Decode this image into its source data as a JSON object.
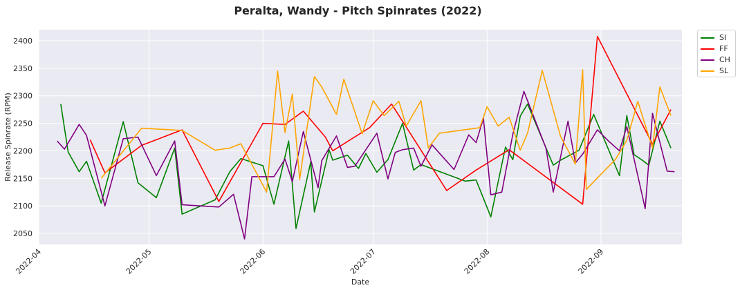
{
  "chart_data": {
    "type": "line",
    "title": "Peralta, Wandy - Pitch Spinrates (2022)",
    "xlabel": "Date",
    "ylabel": "Release Spinrate (RPM)",
    "xlim": [
      "2022-04-01",
      "2022-09-23"
    ],
    "ylim": [
      2030,
      2420
    ],
    "x_ticks": [
      "2022-04-01",
      "2022-05-01",
      "2022-06-01",
      "2022-07-01",
      "2022-08-01",
      "2022-09-01"
    ],
    "x_tick_labels": [
      "2022-04",
      "2022-05",
      "2022-06",
      "2022-07",
      "2022-08",
      "2022-09"
    ],
    "y_ticks": [
      2050,
      2100,
      2150,
      2200,
      2250,
      2300,
      2350,
      2400
    ],
    "grid": true,
    "legend_position": "outside-top-right",
    "series": [
      {
        "name": "SI",
        "color": "#008000",
        "points": [
          [
            "2022-04-07",
            2285
          ],
          [
            "2022-04-09",
            2198
          ],
          [
            "2022-04-12",
            2162
          ],
          [
            "2022-04-14",
            2181
          ],
          [
            "2022-04-18",
            2105
          ],
          [
            "2022-04-24",
            2253
          ],
          [
            "2022-04-28",
            2142
          ],
          [
            "2022-05-03",
            2115
          ],
          [
            "2022-05-08",
            2205
          ],
          [
            "2022-05-10",
            2085
          ],
          [
            "2022-05-19",
            2111
          ],
          [
            "2022-05-23",
            2162
          ],
          [
            "2022-05-26",
            2186
          ],
          [
            "2022-06-01",
            2173
          ],
          [
            "2022-06-04",
            2103
          ],
          [
            "2022-06-08",
            2218
          ],
          [
            "2022-06-10",
            2059
          ],
          [
            "2022-06-14",
            2180
          ],
          [
            "2022-06-15",
            2089
          ],
          [
            "2022-06-19",
            2202
          ],
          [
            "2022-06-20",
            2183
          ],
          [
            "2022-06-24",
            2192
          ],
          [
            "2022-06-27",
            2168
          ],
          [
            "2022-06-29",
            2195
          ],
          [
            "2022-07-02",
            2161
          ],
          [
            "2022-07-05",
            2184
          ],
          [
            "2022-07-09",
            2250
          ],
          [
            "2022-07-12",
            2165
          ],
          [
            "2022-07-14",
            2175
          ],
          [
            "2022-07-26",
            2145
          ],
          [
            "2022-07-29",
            2147
          ],
          [
            "2022-08-02",
            2080
          ],
          [
            "2022-08-06",
            2207
          ],
          [
            "2022-08-08",
            2184
          ],
          [
            "2022-08-10",
            2263
          ],
          [
            "2022-08-12",
            2285
          ],
          [
            "2022-08-19",
            2174
          ],
          [
            "2022-08-21",
            2183
          ],
          [
            "2022-08-26",
            2201
          ],
          [
            "2022-08-30",
            2266
          ],
          [
            "2022-09-06",
            2155
          ],
          [
            "2022-09-08",
            2264
          ],
          [
            "2022-09-10",
            2193
          ],
          [
            "2022-09-12",
            2184
          ],
          [
            "2022-09-14",
            2174
          ],
          [
            "2022-09-17",
            2254
          ],
          [
            "2022-09-20",
            2205
          ]
        ]
      },
      {
        "name": "FF",
        "color": "#ff0000",
        "points": [
          [
            "2022-04-15",
            2220
          ],
          [
            "2022-04-19",
            2160
          ],
          [
            "2022-04-29",
            2210
          ],
          [
            "2022-05-10",
            2238
          ],
          [
            "2022-05-20",
            2108
          ],
          [
            "2022-06-01",
            2250
          ],
          [
            "2022-06-07",
            2248
          ],
          [
            "2022-06-12",
            2272
          ],
          [
            "2022-06-18",
            2225
          ],
          [
            "2022-06-20",
            2200
          ],
          [
            "2022-06-30",
            2242
          ],
          [
            "2022-07-06",
            2285
          ],
          [
            "2022-07-21",
            2128
          ],
          [
            "2022-07-29",
            2165
          ],
          [
            "2022-08-07",
            2202
          ],
          [
            "2022-08-27",
            2103
          ],
          [
            "2022-08-31",
            2408
          ],
          [
            "2022-09-15",
            2212
          ],
          [
            "2022-09-20",
            2275
          ]
        ]
      },
      {
        "name": "CH",
        "color": "#800080",
        "points": [
          [
            "2022-04-06",
            2218
          ],
          [
            "2022-04-08",
            2203
          ],
          [
            "2022-04-12",
            2248
          ],
          [
            "2022-04-14",
            2228
          ],
          [
            "2022-04-19",
            2100
          ],
          [
            "2022-04-24",
            2222
          ],
          [
            "2022-04-28",
            2225
          ],
          [
            "2022-05-03",
            2155
          ],
          [
            "2022-05-08",
            2218
          ],
          [
            "2022-05-10",
            2102
          ],
          [
            "2022-05-20",
            2098
          ],
          [
            "2022-05-24",
            2121
          ],
          [
            "2022-05-27",
            2040
          ],
          [
            "2022-05-29",
            2153
          ],
          [
            "2022-06-04",
            2153
          ],
          [
            "2022-06-07",
            2185
          ],
          [
            "2022-06-09",
            2144
          ],
          [
            "2022-06-12",
            2235
          ],
          [
            "2022-06-16",
            2133
          ],
          [
            "2022-06-17",
            2182
          ],
          [
            "2022-06-21",
            2227
          ],
          [
            "2022-06-24",
            2170
          ],
          [
            "2022-06-26",
            2172
          ],
          [
            "2022-07-02",
            2232
          ],
          [
            "2022-07-05",
            2149
          ],
          [
            "2022-07-07",
            2197
          ],
          [
            "2022-07-09",
            2202
          ],
          [
            "2022-07-12",
            2205
          ],
          [
            "2022-07-14",
            2172
          ],
          [
            "2022-07-17",
            2211
          ],
          [
            "2022-07-23",
            2166
          ],
          [
            "2022-07-27",
            2229
          ],
          [
            "2022-07-29",
            2215
          ],
          [
            "2022-07-31",
            2259
          ],
          [
            "2022-08-02",
            2120
          ],
          [
            "2022-08-05",
            2125
          ],
          [
            "2022-08-08",
            2230
          ],
          [
            "2022-08-11",
            2308
          ],
          [
            "2022-08-17",
            2205
          ],
          [
            "2022-08-19",
            2125
          ],
          [
            "2022-08-23",
            2254
          ],
          [
            "2022-08-25",
            2178
          ],
          [
            "2022-08-27",
            2194
          ],
          [
            "2022-08-31",
            2238
          ],
          [
            "2022-09-03",
            2218
          ],
          [
            "2022-09-06",
            2200
          ],
          [
            "2022-09-08",
            2244
          ],
          [
            "2022-09-13",
            2095
          ],
          [
            "2022-09-15",
            2268
          ],
          [
            "2022-09-19",
            2163
          ],
          [
            "2022-09-21",
            2162
          ]
        ]
      },
      {
        "name": "SL",
        "color": "#ffa500",
        "points": [
          [
            "2022-04-18",
            2150
          ],
          [
            "2022-04-29",
            2241
          ],
          [
            "2022-05-10",
            2237
          ],
          [
            "2022-05-19",
            2201
          ],
          [
            "2022-05-23",
            2205
          ],
          [
            "2022-05-26",
            2213
          ],
          [
            "2022-06-02",
            2125
          ],
          [
            "2022-06-05",
            2345
          ],
          [
            "2022-06-07",
            2233
          ],
          [
            "2022-06-09",
            2303
          ],
          [
            "2022-06-11",
            2148
          ],
          [
            "2022-06-15",
            2335
          ],
          [
            "2022-06-17",
            2316
          ],
          [
            "2022-06-21",
            2266
          ],
          [
            "2022-06-23",
            2330
          ],
          [
            "2022-06-28",
            2231
          ],
          [
            "2022-07-01",
            2291
          ],
          [
            "2022-07-04",
            2264
          ],
          [
            "2022-07-08",
            2290
          ],
          [
            "2022-07-10",
            2245
          ],
          [
            "2022-07-14",
            2291
          ],
          [
            "2022-07-16",
            2205
          ],
          [
            "2022-07-19",
            2232
          ],
          [
            "2022-07-30",
            2242
          ],
          [
            "2022-08-01",
            2280
          ],
          [
            "2022-08-04",
            2245
          ],
          [
            "2022-08-07",
            2261
          ],
          [
            "2022-08-10",
            2201
          ],
          [
            "2022-08-12",
            2232
          ],
          [
            "2022-08-16",
            2346
          ],
          [
            "2022-08-21",
            2226
          ],
          [
            "2022-08-25",
            2176
          ],
          [
            "2022-08-27",
            2347
          ],
          [
            "2022-08-28",
            2130
          ],
          [
            "2022-09-05",
            2185
          ],
          [
            "2022-09-08",
            2219
          ],
          [
            "2022-09-11",
            2290
          ],
          [
            "2022-09-15",
            2205
          ],
          [
            "2022-09-17",
            2316
          ],
          [
            "2022-09-20",
            2264
          ]
        ]
      }
    ]
  }
}
